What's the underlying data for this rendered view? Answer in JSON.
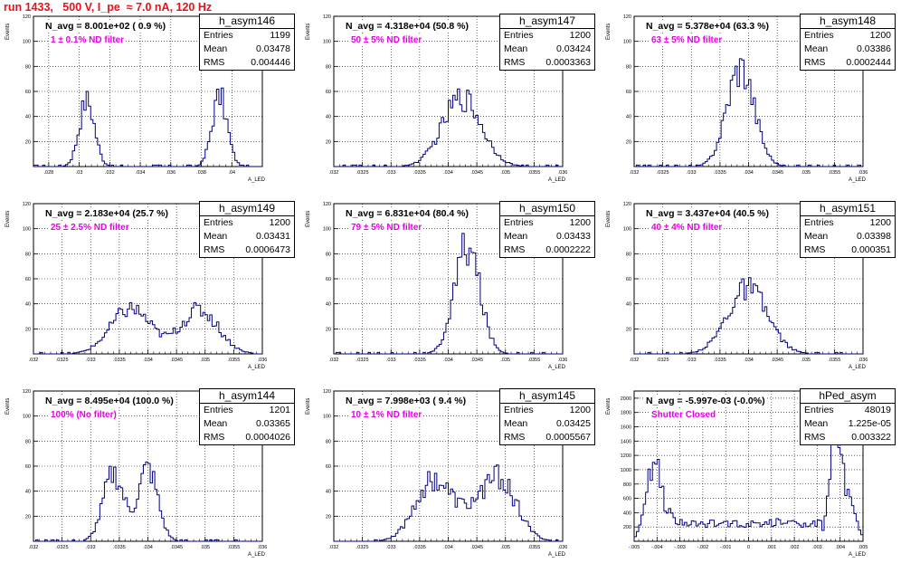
{
  "title": "run 1433,   500 V, I_pe  ≈ 7.0 nA, 120 Hz",
  "colors": {
    "title": "#e8101a",
    "hist": "#000080",
    "filter_label": "#e600e6",
    "grid": "#000000"
  },
  "chart_data": [
    {
      "type": "histogram",
      "name": "h_asym146",
      "entries": "1199",
      "mean": "0.03478",
      "rms": "0.004446",
      "n_avg_label": "N_avg = 8.001e+02 ( 0.9 %)",
      "filter_label": "1 ± 0.1% ND filter",
      "ylabel": "Events",
      "xlabel": "A_LED",
      "xlim": [
        0.027,
        0.042
      ],
      "ylim": [
        0,
        120
      ],
      "xticks": [
        0.028,
        0.03,
        0.032,
        0.034,
        0.036,
        0.038,
        0.04
      ],
      "yticks": [
        20,
        40,
        60,
        80,
        100,
        120
      ],
      "peaks": [
        {
          "center": 0.0305,
          "sigma": 0.0005,
          "height": 53
        },
        {
          "center": 0.0392,
          "sigma": 0.0005,
          "height": 56
        }
      ]
    },
    {
      "type": "histogram",
      "name": "h_asym147",
      "entries": "1200",
      "mean": "0.03424",
      "rms": "0.0003363",
      "n_avg_label": "N_avg = 4.318e+04 (50.8 %)",
      "filter_label": "50 ± 5% ND filter",
      "ylabel": "Events",
      "xlabel": "A_LED",
      "xlim": [
        0.032,
        0.036
      ],
      "ylim": [
        0,
        120
      ],
      "xticks": [
        0.032,
        0.0325,
        0.033,
        0.0335,
        0.034,
        0.0345,
        0.035,
        0.0355,
        0.036
      ],
      "yticks": [
        20,
        40,
        60,
        80,
        100,
        120
      ],
      "peaks": [
        {
          "center": 0.03424,
          "sigma": 0.00034,
          "height": 55
        }
      ]
    },
    {
      "type": "histogram",
      "name": "h_asym148",
      "entries": "1200",
      "mean": "0.03386",
      "rms": "0.0002444",
      "n_avg_label": "N_avg = 5.378e+04 (63.3 %)",
      "filter_label": "63 ± 5% ND filter",
      "ylabel": "Events",
      "xlabel": "A_LED",
      "xlim": [
        0.032,
        0.036
      ],
      "ylim": [
        0,
        120
      ],
      "xticks": [
        0.032,
        0.0325,
        0.033,
        0.0335,
        0.034,
        0.0345,
        0.035,
        0.0355,
        0.036
      ],
      "yticks": [
        20,
        40,
        60,
        80,
        100,
        120
      ],
      "peaks": [
        {
          "center": 0.03386,
          "sigma": 0.00024,
          "height": 80
        }
      ]
    },
    {
      "type": "histogram",
      "name": "h_asym149",
      "entries": "1200",
      "mean": "0.03431",
      "rms": "0.0006473",
      "n_avg_label": "N_avg = 2.183e+04 (25.7 %)",
      "filter_label": "25 ± 2.5% ND filter",
      "ylabel": "Events",
      "xlabel": "A_LED",
      "xlim": [
        0.032,
        0.036
      ],
      "ylim": [
        0,
        120
      ],
      "xticks": [
        0.032,
        0.0325,
        0.033,
        0.0335,
        0.034,
        0.0345,
        0.035,
        0.0355,
        0.036
      ],
      "yticks": [
        20,
        40,
        60,
        80,
        100,
        120
      ],
      "peaks": [
        {
          "center": 0.0337,
          "sigma": 0.00035,
          "height": 36
        },
        {
          "center": 0.0349,
          "sigma": 0.00033,
          "height": 35
        }
      ]
    },
    {
      "type": "histogram",
      "name": "h_asym150",
      "entries": "1200",
      "mean": "0.03433",
      "rms": "0.0002222",
      "n_avg_label": "N_avg = 6.831e+04 (80.4 %)",
      "filter_label": "79 ± 5% ND filter",
      "ylabel": "Events",
      "xlabel": "A_LED",
      "xlim": [
        0.032,
        0.036
      ],
      "ylim": [
        0,
        120
      ],
      "xticks": [
        0.032,
        0.0325,
        0.033,
        0.0335,
        0.034,
        0.0345,
        0.035,
        0.0355,
        0.036
      ],
      "yticks": [
        20,
        40,
        60,
        80,
        100,
        120
      ],
      "peaks": [
        {
          "center": 0.03433,
          "sigma": 0.00022,
          "height": 86
        }
      ]
    },
    {
      "type": "histogram",
      "name": "h_asym151",
      "entries": "1200",
      "mean": "0.03398",
      "rms": "0.000351",
      "n_avg_label": "N_avg = 3.437e+04 (40.5 %)",
      "filter_label": "40 ± 4% ND filter",
      "ylabel": "Events",
      "xlabel": "A_LED",
      "xlim": [
        0.032,
        0.036
      ],
      "ylim": [
        0,
        120
      ],
      "xticks": [
        0.032,
        0.0325,
        0.033,
        0.0335,
        0.034,
        0.0345,
        0.035,
        0.0355,
        0.036
      ],
      "yticks": [
        20,
        40,
        60,
        80,
        100,
        120
      ],
      "peaks": [
        {
          "center": 0.03398,
          "sigma": 0.00035,
          "height": 52
        }
      ]
    },
    {
      "type": "histogram",
      "name": "h_asym144",
      "entries": "1201",
      "mean": "0.03365",
      "rms": "0.0004026",
      "n_avg_label": "N_avg = 8.495e+04 (100.0 %)",
      "filter_label": "100% (No filter)",
      "ylabel": "Events",
      "xlabel": "A_LED",
      "xlim": [
        0.032,
        0.036
      ],
      "ylim": [
        0,
        120
      ],
      "xticks": [
        0.032,
        0.0325,
        0.033,
        0.0335,
        0.034,
        0.0345,
        0.035,
        0.0355,
        0.036
      ],
      "yticks": [
        20,
        40,
        60,
        80,
        100,
        120
      ],
      "peaks": [
        {
          "center": 0.0334,
          "sigma": 0.00018,
          "height": 54
        },
        {
          "center": 0.034,
          "sigma": 0.00017,
          "height": 58
        }
      ]
    },
    {
      "type": "histogram",
      "name": "h_asym145",
      "entries": "1200",
      "mean": "0.03425",
      "rms": "0.0005567",
      "n_avg_label": "N_avg = 7.998e+03 ( 9.4 %)",
      "filter_label": "10 ± 1% ND filter",
      "ylabel": "Events",
      "xlabel": "A_LED",
      "xlim": [
        0.032,
        0.036
      ],
      "ylim": [
        0,
        120
      ],
      "xticks": [
        0.032,
        0.0325,
        0.033,
        0.0335,
        0.034,
        0.0345,
        0.035,
        0.0355,
        0.036
      ],
      "yticks": [
        20,
        40,
        60,
        80,
        100,
        120
      ],
      "peaks": [
        {
          "center": 0.0337,
          "sigma": 0.0003,
          "height": 40
        },
        {
          "center": 0.0349,
          "sigma": 0.0003,
          "height": 42
        },
        {
          "center": 0.0343,
          "sigma": 0.0005,
          "height": 18
        }
      ]
    },
    {
      "type": "histogram",
      "name": "hPed_asym",
      "entries": "48019",
      "mean": "1.225e-05",
      "rms": "0.003322",
      "n_avg_label": "N_avg = -5.997e-03 (-0.0%)",
      "filter_label": "Shutter Closed",
      "ylabel": "Events",
      "xlabel": "A_LED",
      "xlim": [
        -0.005,
        0.005
      ],
      "ylim": [
        0,
        2100
      ],
      "xticks": [
        -0.005,
        -0.004,
        -0.003,
        -0.002,
        -0.001,
        0,
        0.001,
        0.002,
        0.003,
        0.004,
        0.005
      ],
      "yticks": [
        200,
        400,
        600,
        800,
        1000,
        1200,
        1400,
        1600,
        1800,
        2000
      ],
      "baseline": {
        "from": -0.0035,
        "to": 0.0032,
        "height": 250
      },
      "peaks": [
        {
          "center": -0.0041,
          "sigma": 0.00035,
          "height": 1150
        },
        {
          "center": 0.0038,
          "sigma": 0.00025,
          "height": 1550
        },
        {
          "center": 0.0044,
          "sigma": 0.0003,
          "height": 500
        }
      ]
    }
  ]
}
